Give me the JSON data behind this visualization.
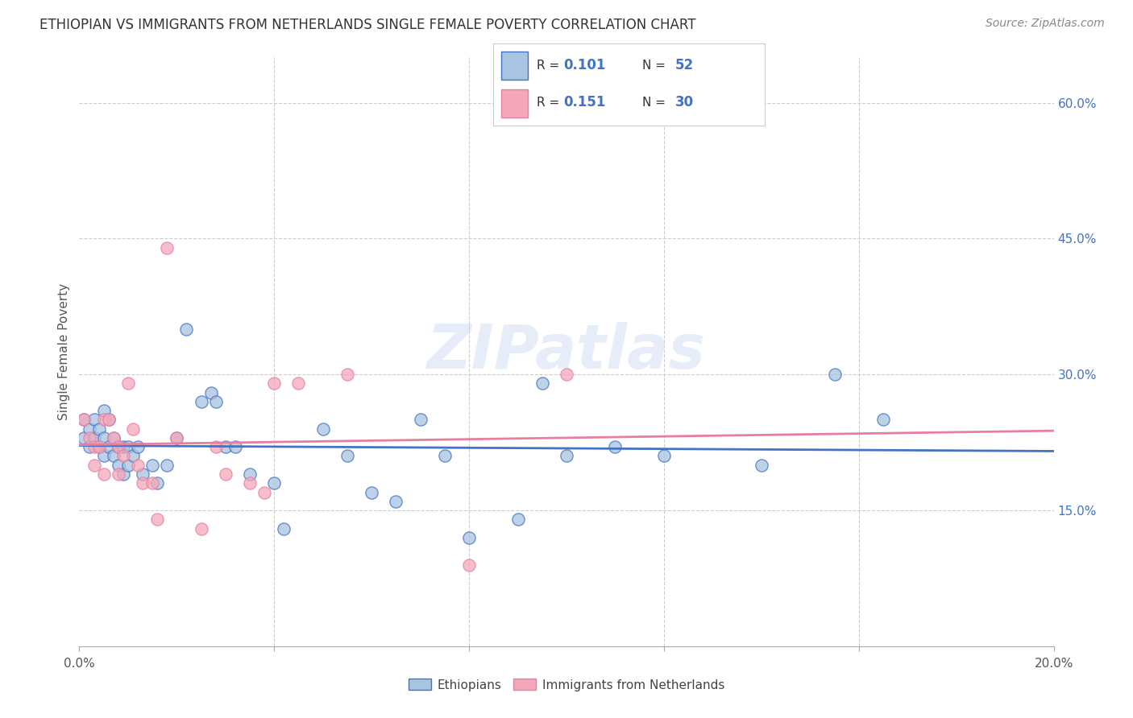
{
  "title": "ETHIOPIAN VS IMMIGRANTS FROM NETHERLANDS SINGLE FEMALE POVERTY CORRELATION CHART",
  "source": "Source: ZipAtlas.com",
  "ylabel": "Single Female Poverty",
  "x_tick_positions": [
    0.0,
    0.04,
    0.08,
    0.12,
    0.16,
    0.2
  ],
  "x_tick_labels": [
    "0.0%",
    "",
    "",
    "",
    "",
    "20.0%"
  ],
  "y_tick_positions": [
    0.15,
    0.3,
    0.45,
    0.6
  ],
  "y_tick_labels": [
    "15.0%",
    "30.0%",
    "45.0%",
    "60.0%"
  ],
  "xlim": [
    0.0,
    0.2
  ],
  "ylim": [
    0.0,
    0.65
  ],
  "ethiopians_color": "#a8c4e0",
  "netherlands_color": "#f4a7b9",
  "ethiopians_line_color": "#4472c4",
  "netherlands_line_color": "#e87fa0",
  "R_ethiopians": 0.101,
  "N_ethiopians": 52,
  "R_netherlands": 0.151,
  "N_netherlands": 30,
  "legend_label_1": "Ethiopians",
  "legend_label_2": "Immigrants from Netherlands",
  "watermark": "ZIPatlas",
  "ethiopians_x": [
    0.001,
    0.001,
    0.002,
    0.002,
    0.003,
    0.003,
    0.004,
    0.004,
    0.005,
    0.005,
    0.005,
    0.006,
    0.006,
    0.007,
    0.007,
    0.008,
    0.008,
    0.009,
    0.009,
    0.01,
    0.01,
    0.011,
    0.012,
    0.013,
    0.015,
    0.016,
    0.018,
    0.02,
    0.022,
    0.025,
    0.027,
    0.028,
    0.03,
    0.032,
    0.035,
    0.04,
    0.042,
    0.05,
    0.055,
    0.06,
    0.065,
    0.07,
    0.075,
    0.08,
    0.09,
    0.095,
    0.1,
    0.11,
    0.12,
    0.14,
    0.155,
    0.165
  ],
  "ethiopians_y": [
    0.25,
    0.23,
    0.24,
    0.22,
    0.25,
    0.23,
    0.24,
    0.22,
    0.26,
    0.23,
    0.21,
    0.25,
    0.22,
    0.23,
    0.21,
    0.22,
    0.2,
    0.22,
    0.19,
    0.22,
    0.2,
    0.21,
    0.22,
    0.19,
    0.2,
    0.18,
    0.2,
    0.23,
    0.35,
    0.27,
    0.28,
    0.27,
    0.22,
    0.22,
    0.19,
    0.18,
    0.13,
    0.24,
    0.21,
    0.17,
    0.16,
    0.25,
    0.21,
    0.12,
    0.14,
    0.29,
    0.21,
    0.22,
    0.21,
    0.2,
    0.3,
    0.25
  ],
  "netherlands_x": [
    0.001,
    0.002,
    0.003,
    0.003,
    0.004,
    0.005,
    0.005,
    0.006,
    0.007,
    0.008,
    0.008,
    0.009,
    0.01,
    0.011,
    0.012,
    0.013,
    0.015,
    0.016,
    0.018,
    0.02,
    0.025,
    0.028,
    0.03,
    0.035,
    0.038,
    0.04,
    0.045,
    0.055,
    0.08,
    0.1
  ],
  "netherlands_y": [
    0.25,
    0.23,
    0.22,
    0.2,
    0.22,
    0.25,
    0.19,
    0.25,
    0.23,
    0.22,
    0.19,
    0.21,
    0.29,
    0.24,
    0.2,
    0.18,
    0.18,
    0.14,
    0.44,
    0.23,
    0.13,
    0.22,
    0.19,
    0.18,
    0.17,
    0.29,
    0.29,
    0.3,
    0.09,
    0.3
  ]
}
